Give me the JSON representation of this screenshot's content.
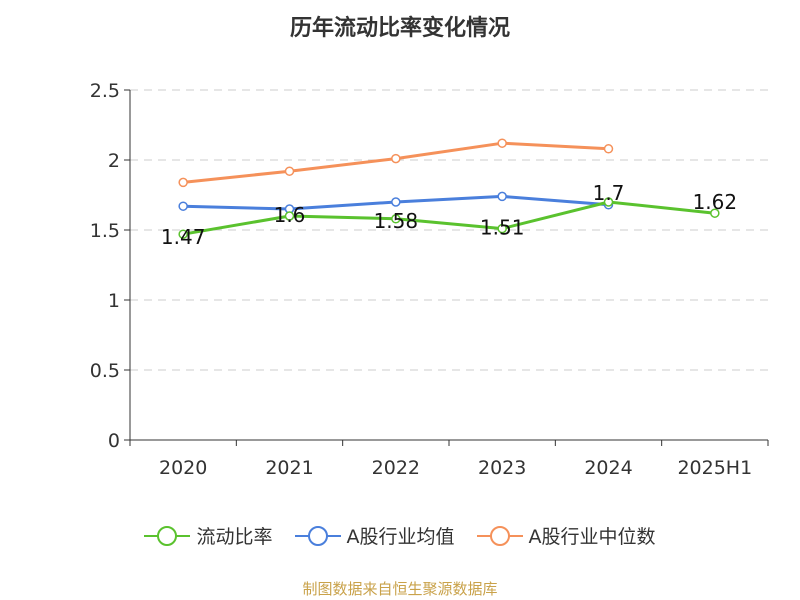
{
  "chart_data": {
    "type": "line",
    "title": "历年流动比率变化情况",
    "categories": [
      "2020",
      "2021",
      "2022",
      "2023",
      "2024",
      "2025H1"
    ],
    "ylim": [
      0,
      2.5
    ],
    "yticks": [
      "0",
      "0.5",
      "1",
      "1.5",
      "2",
      "2.5"
    ],
    "grid": true,
    "legend_position": "bottom",
    "series": [
      {
        "name": "流动比率",
        "color": "#5ac22e",
        "values": [
          1.47,
          1.6,
          1.58,
          1.51,
          1.7,
          1.62
        ],
        "labels": [
          "1.47",
          "1.6",
          "1.58",
          "1.51",
          "1.7",
          "1.62"
        ]
      },
      {
        "name": "A股行业均值",
        "color": "#4a7fdc",
        "values": [
          1.67,
          1.65,
          1.7,
          1.74,
          1.68,
          null
        ]
      },
      {
        "name": "A股行业中位数",
        "color": "#f5915a",
        "values": [
          1.84,
          1.92,
          2.01,
          2.12,
          2.08,
          null
        ]
      }
    ]
  },
  "source": "制图数据来自恒生聚源数据库"
}
